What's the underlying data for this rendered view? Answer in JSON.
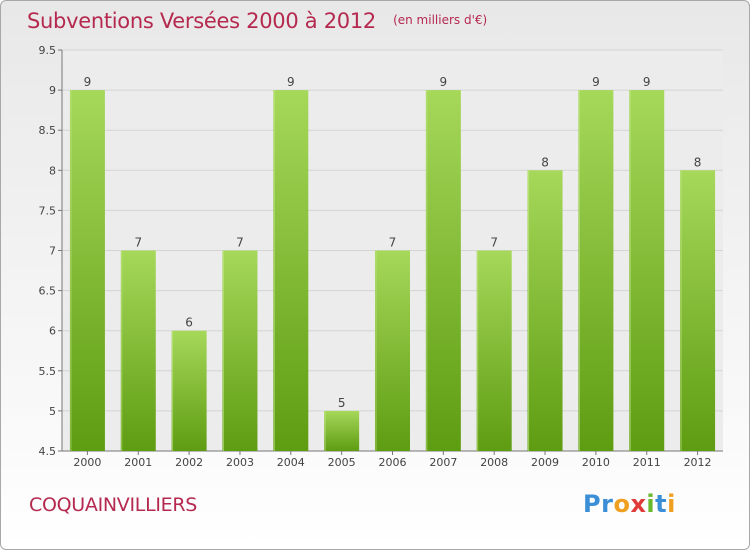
{
  "title": "Subventions Versées 2000 à 2012",
  "subtitle": "(en milliers d'€)",
  "commune": "COQUAINVILLIERS",
  "logo": {
    "text": "Proxiti",
    "letters": [
      "P",
      "r",
      "o",
      "x",
      "i",
      "t",
      "i"
    ],
    "colors": [
      "#3a8fd6",
      "#3a8fd6",
      "#f0a020",
      "#e03a3a",
      "#6ab82c",
      "#3a8fd6",
      "#f0a020"
    ]
  },
  "colors": {
    "bar_light": "#a6d85a",
    "bar_dark": "#5e9c12",
    "accent": "#b5294f"
  },
  "chart_data": {
    "type": "bar",
    "categories": [
      "2000",
      "2001",
      "2002",
      "2003",
      "2004",
      "2005",
      "2006",
      "2007",
      "2008",
      "2009",
      "2010",
      "2011",
      "2012"
    ],
    "values": [
      9,
      7,
      6,
      7,
      9,
      5,
      7,
      9,
      7,
      8,
      9,
      9,
      8
    ],
    "value_labels": [
      "9",
      "7",
      "6",
      "7",
      "9",
      "5",
      "7",
      "9",
      "7",
      "8",
      "9",
      "9",
      "8"
    ],
    "ylim": [
      4.5,
      9.5
    ],
    "yticks": [
      4.5,
      5,
      5.5,
      6,
      6.5,
      7,
      7.5,
      8,
      8.5,
      9,
      9.5
    ],
    "ytick_labels": [
      "4.5",
      "5",
      "5.5",
      "6",
      "6.5",
      "7",
      "7.5",
      "8",
      "8.5",
      "9",
      "9.5"
    ],
    "grid": true,
    "xlabel": "",
    "ylabel": ""
  }
}
